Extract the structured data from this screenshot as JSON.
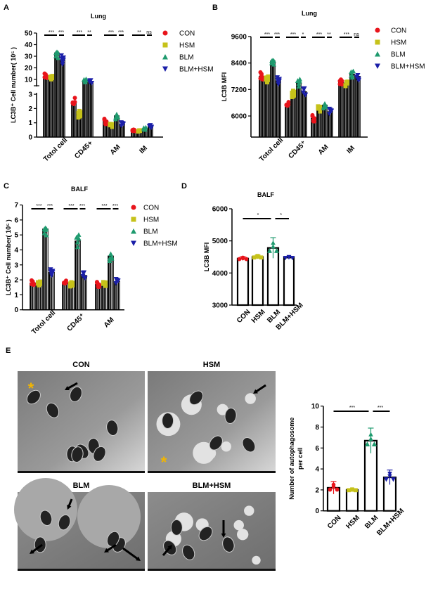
{
  "colors": {
    "CON": "#e8141b",
    "HSM": "#c6c21a",
    "BLM": "#1e9a6e",
    "BLM+HSM": "#1b1fa8",
    "asterisk": "#f2b500"
  },
  "legend": [
    {
      "label": "CON",
      "marker": "circle"
    },
    {
      "label": "HSM",
      "marker": "square"
    },
    {
      "label": "BLM",
      "marker": "triangle-up"
    },
    {
      "label": "BLM+HSM",
      "marker": "triangle-down"
    }
  ],
  "chart_data": [
    {
      "panel": "A",
      "type": "bar",
      "title": "Lung",
      "ylabel": "LC3B⁺ Cell number( 10⁵ )",
      "y_axis": "broken",
      "ylim_lower": [
        0,
        3
      ],
      "ylim_upper": [
        5,
        50
      ],
      "yticks_lower": [
        "0",
        "1",
        "2",
        "3"
      ],
      "yticks_upper": [
        "10",
        "20",
        "30",
        "40",
        "50"
      ],
      "categories": [
        "Totol cell",
        "CD45+",
        "AM",
        "IM"
      ],
      "series": [
        {
          "name": "CON",
          "values": [
            13,
            2.4,
            1.1,
            0.5
          ]
        },
        {
          "name": "HSM",
          "values": [
            12,
            1.6,
            0.8,
            0.45
          ]
        },
        {
          "name": "BLM",
          "values": [
            33,
            9,
            1.5,
            0.6
          ]
        },
        {
          "name": "BLM+HSM",
          "values": [
            27,
            8,
            0.9,
            0.8
          ]
        }
      ],
      "significance": [
        [
          "***",
          "***"
        ],
        [
          "***",
          "**"
        ],
        [
          "***",
          "***"
        ],
        [
          "**",
          "ns"
        ]
      ]
    },
    {
      "panel": "B",
      "type": "bar",
      "title": "Lung",
      "ylabel": "LC3B MFI",
      "ylim": [
        5000,
        9600
      ],
      "yticks": [
        "6000",
        "7200",
        "8400",
        "9600"
      ],
      "categories": [
        "Totol cell",
        "CD45⁺",
        "AM",
        "IM"
      ],
      "series": [
        {
          "name": "CON",
          "values": [
            7800,
            6500,
            5900,
            7600
          ]
        },
        {
          "name": "HSM",
          "values": [
            7700,
            7000,
            6300,
            7500
          ]
        },
        {
          "name": "BLM",
          "values": [
            8500,
            7500,
            6500,
            7900
          ]
        },
        {
          "name": "BLM+HSM",
          "values": [
            7600,
            7100,
            6200,
            7800
          ]
        }
      ],
      "significance": [
        [
          "***",
          "***"
        ],
        [
          "***",
          "*"
        ],
        [
          "***",
          "**"
        ],
        [
          "***",
          "ns"
        ]
      ]
    },
    {
      "panel": "C",
      "type": "bar",
      "title": "BALF",
      "ylabel": "LC3B⁺ Cell number( 10⁵ )",
      "ylim": [
        0,
        7
      ],
      "yticks": [
        "0",
        "1",
        "2",
        "3",
        "4",
        "5",
        "6",
        "7"
      ],
      "categories": [
        "Totol cell",
        "CD45⁺",
        "AM"
      ],
      "series": [
        {
          "name": "CON",
          "values": [
            1.8,
            1.8,
            1.7
          ]
        },
        {
          "name": "HSM",
          "values": [
            1.8,
            1.7,
            1.7
          ]
        },
        {
          "name": "BLM",
          "values": [
            5.4,
            4.6,
            3.6
          ]
        },
        {
          "name": "BLM+HSM",
          "values": [
            2.5,
            2.3,
            1.9
          ]
        }
      ],
      "significance": [
        [
          "***",
          "***"
        ],
        [
          "***",
          "***"
        ],
        [
          "***",
          "***"
        ]
      ]
    },
    {
      "panel": "D",
      "type": "bar",
      "title": "BALF",
      "ylabel": "LC3B MFI",
      "ylim": [
        3000,
        6000
      ],
      "yticks": [
        "3000",
        "4000",
        "5000",
        "6000"
      ],
      "categories": [
        "CON",
        "HSM",
        "BLM",
        "BLM+HSM"
      ],
      "values": [
        4450,
        4500,
        4780,
        4480
      ],
      "errors": [
        60,
        60,
        320,
        40
      ],
      "significance": [
        "*",
        "*"
      ]
    },
    {
      "panel": "E",
      "type": "bar",
      "title": "",
      "ylabel": "Number of autophagosome per cell",
      "ylabel_lines": [
        "Number of autophagosome",
        "per cell"
      ],
      "ylim": [
        0,
        10
      ],
      "yticks": [
        "0",
        "2",
        "4",
        "6",
        "8",
        "10"
      ],
      "categories": [
        "CON",
        "HSM",
        "BLM",
        "BLM+HSM"
      ],
      "values": [
        2.2,
        2.0,
        6.7,
        3.2
      ],
      "errors": [
        0.6,
        0.1,
        1.2,
        0.7
      ],
      "significance": [
        "***",
        "***"
      ]
    }
  ],
  "micrographs": {
    "panel": "E",
    "labels": [
      "CON",
      "HSM",
      "BLM",
      "BLM+HSM"
    ]
  }
}
